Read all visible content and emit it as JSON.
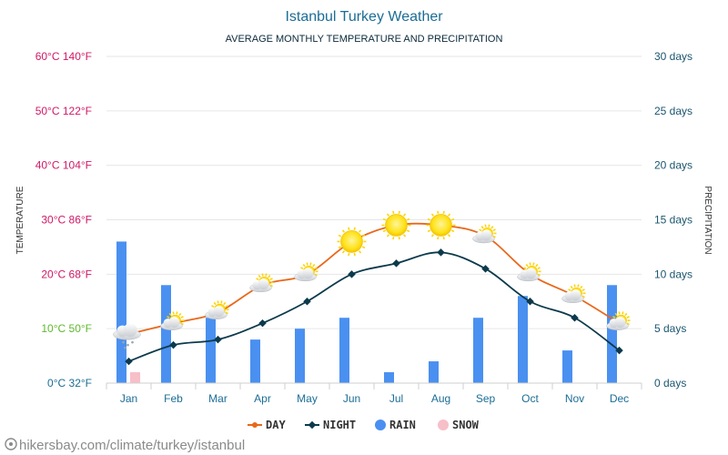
{
  "source_url": "hikersbay.com/climate/turkey/istanbul",
  "colors": {
    "title": "#1b6d96",
    "subtitle": "#0a2a3a",
    "day_line": "#e8681a",
    "night_line": "#0c3a4c",
    "rain": "#4a90f0",
    "snow": "#f7bfc8",
    "grid": "#e6e6e6",
    "axis_left_hot": "#d01866",
    "axis_left_mild": "#5fb82e",
    "axis_left_cold": "#1b6d96",
    "axis_right": "#1b5670",
    "axis_title": "#333333",
    "month": "#1b6d96"
  },
  "chart_data": {
    "type": "line+bar",
    "title": "Istanbul Turkey Weather",
    "subtitle": "AVERAGE MONTHLY TEMPERATURE AND PRECIPITATION",
    "categories": [
      "Jan",
      "Feb",
      "Mar",
      "Apr",
      "May",
      "Jun",
      "Jul",
      "Aug",
      "Sep",
      "Oct",
      "Nov",
      "Dec"
    ],
    "y_left_label": "TEMPERATURE",
    "y_right_label": "PRECIPITATION",
    "y_left_ticks": [
      "0°C 32°F",
      "10°C 50°F",
      "20°C 68°F",
      "30°C 86°F",
      "40°C 104°F",
      "50°C 122°F",
      "60°C 140°F"
    ],
    "y_left_range": [
      0,
      60
    ],
    "y_right_ticks": [
      "0 days",
      "5 days",
      "10 days",
      "15 days",
      "20 days",
      "25 days",
      "30 days"
    ],
    "y_right_range": [
      0,
      30
    ],
    "series": [
      {
        "name": "DAY",
        "kind": "line",
        "unit": "°C",
        "values": [
          9,
          11,
          13,
          18,
          20,
          26,
          29,
          29,
          27,
          20,
          16,
          11
        ]
      },
      {
        "name": "NIGHT",
        "kind": "line",
        "unit": "°C",
        "values": [
          4,
          7,
          8,
          11,
          15,
          20,
          22,
          24,
          21,
          15,
          12,
          6
        ]
      },
      {
        "name": "RAIN",
        "kind": "bar",
        "unit": "days",
        "values": [
          13,
          9,
          6,
          4,
          5,
          6,
          1,
          2,
          6,
          8,
          3,
          9
        ]
      },
      {
        "name": "SNOW",
        "kind": "bar",
        "unit": "days",
        "values": [
          1,
          0,
          0,
          0,
          0,
          0,
          0,
          0,
          0,
          0,
          0,
          0
        ]
      }
    ],
    "weather_icons": [
      "snow-cloud",
      "partly-sunny",
      "partly-sunny",
      "partly-sunny",
      "partly-sunny",
      "sunny",
      "sunny",
      "sunny",
      "partly-sunny",
      "partly-sunny",
      "partly-sunny",
      "partly-sunny"
    ],
    "legend": [
      "DAY",
      "NIGHT",
      "RAIN",
      "SNOW"
    ],
    "legend_position": "bottom-center"
  }
}
